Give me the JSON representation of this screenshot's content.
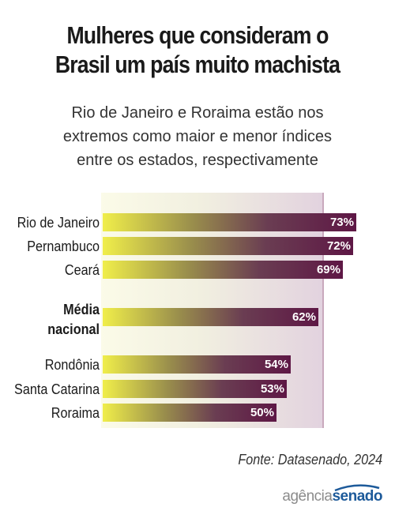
{
  "title_lines": [
    "Mulheres que consideram o",
    "Brasil um país muito machista"
  ],
  "subtitle_lines": [
    "Rio de Janeiro e Roraima estão nos",
    "extremos como maior e menor índices",
    "entre os estados, respectivamente"
  ],
  "source": "Fonte: Datasenado, 2024",
  "logo": {
    "part1": "agência",
    "part2": "senado"
  },
  "colors": {
    "bar_start": "#f0ee4a",
    "bar_end": "#5e1745",
    "panel_end": "#e2d2df"
  },
  "chart_data": {
    "type": "bar",
    "orientation": "horizontal",
    "categories": [
      "Rio de Janeiro",
      "Pernambuco",
      "Ceará",
      "Média nacional",
      "Rondônia",
      "Santa Catarina",
      "Roraima"
    ],
    "values": [
      73,
      72,
      69,
      62,
      54,
      53,
      50
    ],
    "value_labels": [
      "73%",
      "72%",
      "69%",
      "62%",
      "54%",
      "53%",
      "50%"
    ],
    "highlight": "Média nacional",
    "unit": "%"
  }
}
